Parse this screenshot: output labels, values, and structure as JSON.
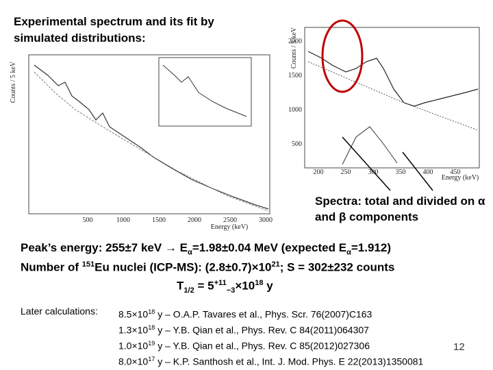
{
  "heading": "Experimental spectrum and its fit by simulated distributions:",
  "left_plot": {
    "y_label": "Counts / 5 keV",
    "x_label": "Energy (keV)",
    "x_ticks": [
      "500",
      "1000",
      "1500",
      "2000",
      "2500",
      "3000"
    ]
  },
  "right_plot": {
    "y_label": "Counts / 5 keV",
    "x_label": "Energy (keV)",
    "x_ticks": [
      "200",
      "250",
      "300",
      "350",
      "400",
      "450"
    ],
    "y_ticks": [
      "2000",
      "1500",
      "1000",
      "500"
    ]
  },
  "callout": "Spectra: total and divided on α and β components",
  "lines": [
    [
      "Peak’s energy:  255±7 keV → E",
      "α",
      "=1.98±0.04 MeV (expected E",
      "α",
      "=1.912)"
    ],
    [
      "Number of ",
      "151",
      "Eu nuclei (ICP-MS): (2.8±0.7)×10",
      "21",
      "; S = 302±232 counts"
    ],
    [
      "T",
      "1/2",
      " = 5",
      "+11",
      "−3",
      "×10",
      "18",
      " y"
    ]
  ],
  "later": {
    "label": "Later calculations:",
    "items": [
      [
        "8.5×10",
        "18",
        " y – O.A.P. Tavares et al., Phys. Scr. 76(2007)C163"
      ],
      [
        "1.3×10",
        "18",
        " y – Y.B. Qian et al., Phys. Rev. C 84(2011)064307"
      ],
      [
        "1.0×10",
        "19",
        " y – Y.B. Qian et al., Phys. Rev. C 85(2012)027306"
      ],
      [
        "8.0×10",
        "17",
        " y – K.P. Santhosh et al., Int. J. Mod. Phys. E 22(2013)1350081"
      ]
    ]
  },
  "page_number": "12"
}
